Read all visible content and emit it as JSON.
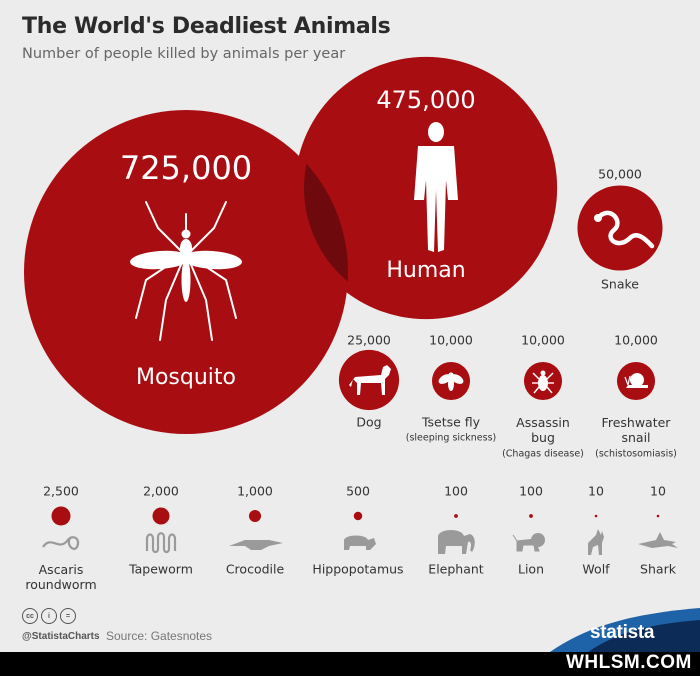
{
  "header": {
    "title": "The World's Deadliest Animals",
    "subtitle": "Number of people killed by animals per year"
  },
  "chart_data": {
    "type": "bubble",
    "title": "The World's Deadliest Animals",
    "subtitle": "Number of people killed by animals per year",
    "unit": "people killed per year",
    "bubble_color": "#a80d12",
    "items": [
      {
        "key": "mosquito",
        "label": "Mosquito",
        "value": 725000,
        "value_label": "725,000",
        "icon": "mosquito-icon"
      },
      {
        "key": "human",
        "label": "Human",
        "value": 475000,
        "value_label": "475,000",
        "icon": "human-icon"
      },
      {
        "key": "snake",
        "label": "Snake",
        "value": 50000,
        "value_label": "50,000",
        "icon": "snake-icon"
      },
      {
        "key": "dog",
        "label": "Dog",
        "value": 25000,
        "value_label": "25,000",
        "icon": "dog-icon"
      },
      {
        "key": "tsetse",
        "label": "Tsetse fly",
        "sublabel": "(sleeping sickness)",
        "value": 10000,
        "value_label": "10,000",
        "icon": "fly-icon"
      },
      {
        "key": "assassin",
        "label": "Assassin bug",
        "sublabel": "(Chagas disease)",
        "value": 10000,
        "value_label": "10,000",
        "icon": "bug-icon"
      },
      {
        "key": "snail",
        "label": "Freshwater snail",
        "sublabel": "(schistosomiasis)",
        "value": 10000,
        "value_label": "10,000",
        "icon": "snail-icon"
      },
      {
        "key": "ascaris",
        "label": "Ascaris roundworm",
        "value": 2500,
        "value_label": "2,500",
        "icon": "roundworm-icon"
      },
      {
        "key": "tapeworm",
        "label": "Tapeworm",
        "value": 2000,
        "value_label": "2,000",
        "icon": "tapeworm-icon"
      },
      {
        "key": "crocodile",
        "label": "Crocodile",
        "value": 1000,
        "value_label": "1,000",
        "icon": "crocodile-icon"
      },
      {
        "key": "hippo",
        "label": "Hippopotamus",
        "value": 500,
        "value_label": "500",
        "icon": "hippo-icon"
      },
      {
        "key": "elephant",
        "label": "Elephant",
        "value": 100,
        "value_label": "100",
        "icon": "elephant-icon"
      },
      {
        "key": "lion",
        "label": "Lion",
        "value": 100,
        "value_label": "100",
        "icon": "lion-icon"
      },
      {
        "key": "wolf",
        "label": "Wolf",
        "value": 10,
        "value_label": "10",
        "icon": "wolf-icon"
      },
      {
        "key": "shark",
        "label": "Shark",
        "value": 10,
        "value_label": "10",
        "icon": "shark-icon"
      }
    ]
  },
  "footer": {
    "handle": "@StatistaCharts",
    "source": "Source: Gatesnotes",
    "brand": "statista",
    "watermark": "WHLSM.COM",
    "license_icons": [
      "cc",
      "i",
      "="
    ]
  }
}
